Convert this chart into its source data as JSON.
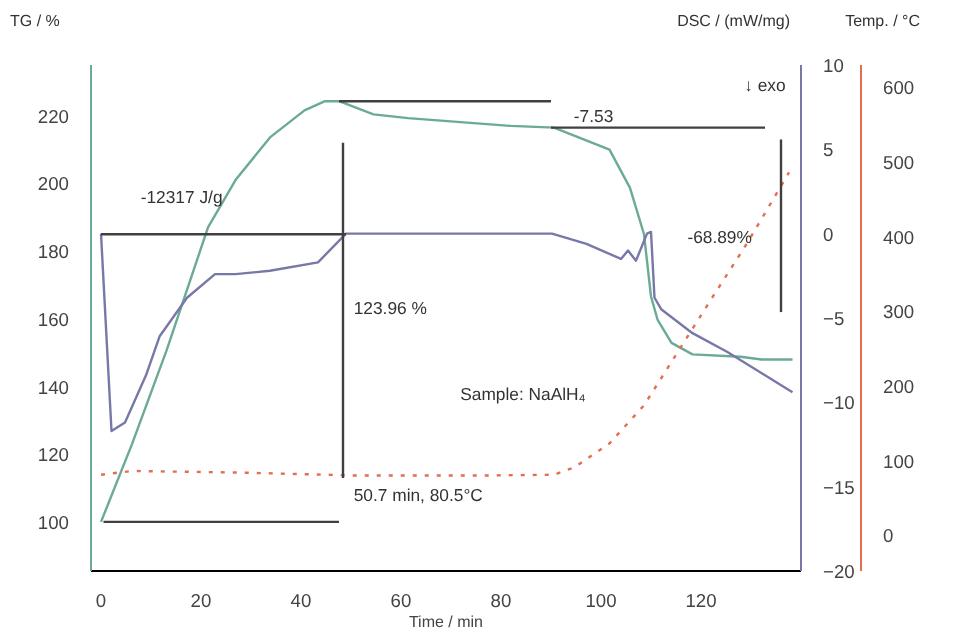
{
  "chart_data": {
    "type": "line",
    "xlabel": "Time / min",
    "ylabel": "TG / %",
    "y2label": "DSC / (mW/mg)",
    "y3label": "Temp. / °C",
    "xlim": [
      -2,
      140
    ],
    "xticks": [
      0,
      20,
      40,
      60,
      80,
      100,
      120
    ],
    "ylim": [
      85.5,
      235
    ],
    "yticks": [
      100,
      120,
      140,
      160,
      180,
      200,
      220
    ],
    "y2lim": [
      -20,
      10
    ],
    "y2ticks": [
      -20,
      -15,
      -10,
      -5,
      0,
      5,
      10
    ],
    "y3lim": [
      -48,
      630
    ],
    "y3ticks": [
      0,
      100,
      200,
      300,
      400,
      500,
      600
    ],
    "grid": false,
    "marker": "none",
    "series": [
      {
        "color": "#6aaa96",
        "x": [
          0,
          6.2,
          13.1,
          21.4,
          26.9,
          33.8,
          40.7,
          44.8,
          47.6,
          54.5,
          61.4,
          82,
          90.6,
          101.7,
          105.8,
          108.6,
          110,
          111.3,
          114.1,
          118.3,
          127.9,
          132.1,
          138.3
        ],
        "values": [
          100,
          123,
          150.6,
          187,
          201,
          213.6,
          221.6,
          224.3,
          224.3,
          220.4,
          219.3,
          217,
          216.5,
          210,
          198.7,
          185,
          166.6,
          159.8,
          152.9,
          149.5,
          148.8,
          148,
          148
        ]
      },
      {
        "color": "#7878a8",
        "axis": "y2",
        "x": [
          0,
          2.1,
          4.8,
          9,
          11.7,
          17.2,
          22.8,
          26.9,
          33.8,
          43.4,
          49,
          84.8,
          90.2,
          97.1,
          104,
          105.4,
          107,
          109.2,
          110,
          110.7,
          112.1,
          118.3,
          125.2,
          138.3
        ],
        "values": [
          0,
          -11.7,
          -11.2,
          -8.4,
          -6.1,
          -3.8,
          -2.4,
          -2.4,
          -2.2,
          -1.7,
          0,
          0,
          0,
          -0.6,
          -1.5,
          -1,
          -1.6,
          0,
          0.1,
          -3.8,
          -4.5,
          -5.9,
          -7,
          -9.4
        ]
      },
      {
        "color": "#e07050",
        "axis": "y3",
        "line_style": "dotted",
        "x": [
          0,
          6.2,
          27,
          50.7,
          76.8,
          90.6,
          94.7,
          101.7,
          108.6,
          115.5,
          122.4,
          129.3,
          137.6
        ],
        "values": [
          81,
          86,
          84,
          80,
          80,
          81,
          91,
          123,
          174,
          247,
          320,
          392,
          486
        ]
      },
      {
        "color": "#404040",
        "x": [
          0,
          49
        ],
        "values": [
          185,
          185
        ]
      },
      {
        "color": "#404040",
        "x": [
          0.5,
          47.6
        ],
        "values": [
          100,
          100
        ]
      },
      {
        "color": "#404040",
        "x": [
          47.6,
          90
        ],
        "values": [
          224.3,
          224.3
        ]
      },
      {
        "color": "#404040",
        "x": [
          90,
          132.8
        ],
        "values": [
          216.5,
          216.5
        ]
      },
      {
        "color": "#404040",
        "x": [
          48.4,
          48.4
        ],
        "values": [
          113,
          212
        ]
      },
      {
        "color": "#404040",
        "x": [
          136,
          136
        ],
        "values": [
          162,
          213
        ]
      }
    ],
    "annotations": [
      "-7.53",
      "-12317 J/g",
      "123.96 %",
      "50.7 min, 80.5°C",
      "Sample: NaAlH₄",
      "-68.89%",
      "↓ exo"
    ]
  }
}
